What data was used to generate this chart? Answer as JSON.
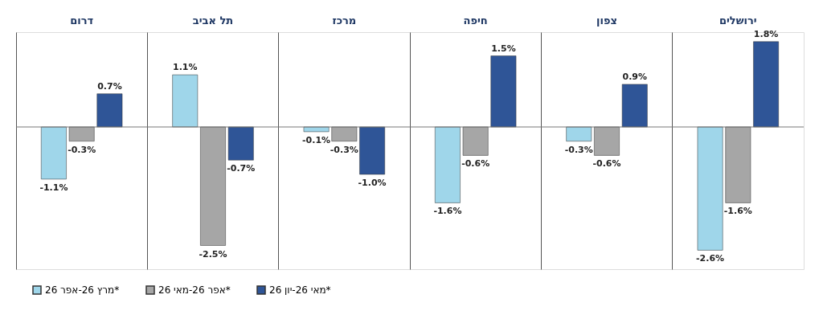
{
  "chart_data": {
    "type": "bar",
    "categories": [
      "דרום",
      "תל אביב",
      "מרכז",
      "חיפה",
      "צפון",
      "ירושלים"
    ],
    "series": [
      {
        "name": "מרץ 26-אפר 26*",
        "color": "#9fd6ea",
        "values": [
          -1.1,
          1.1,
          -0.1,
          -1.6,
          -0.3,
          -2.6
        ],
        "value_labels": [
          "-1.1%",
          "1.1%",
          "-0.1%",
          "-1.6%",
          "-0.3%",
          "-2.6%"
        ]
      },
      {
        "name": "אפר 26-מאי 26*",
        "color": "#a6a6a6",
        "values": [
          -0.3,
          -2.5,
          -0.3,
          -0.6,
          -0.6,
          -1.6
        ],
        "value_labels": [
          "-0.3%",
          "-2.5%",
          "-0.3%",
          "-0.6%",
          "-0.6%",
          "-1.6%"
        ]
      },
      {
        "name": "מאי 26-יון 26*",
        "color": "#2f5597",
        "values": [
          0.7,
          -0.7,
          -1.0,
          1.5,
          0.9,
          1.8
        ],
        "value_labels": [
          "0.7%",
          "-0.7%",
          "-1.0%",
          "1.5%",
          "0.9%",
          "1.8%"
        ]
      }
    ],
    "grid": "x",
    "legend": "bottom left"
  }
}
